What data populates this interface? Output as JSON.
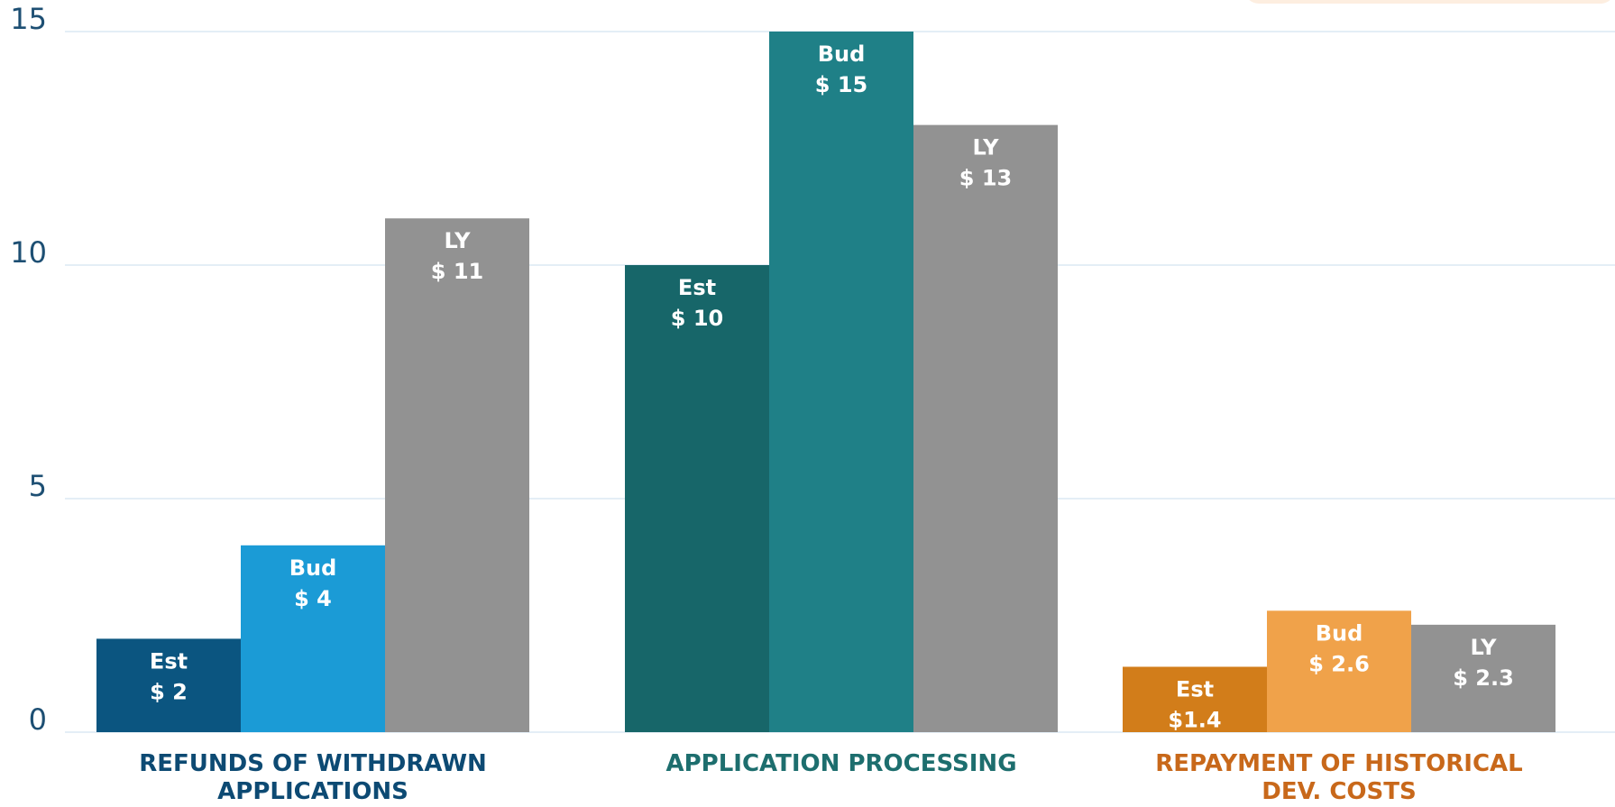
{
  "chart_data": {
    "type": "bar",
    "categories": [
      "REFUNDS OF WITHDRAWN APPLICATIONS",
      "APPLICATION PROCESSING",
      "REPAYMENT OF HISTORICAL DEV. COSTS"
    ],
    "category_colors": [
      "#0d4a73",
      "#1d6e6e",
      "#c8681a"
    ],
    "series": [
      {
        "name": "Est",
        "colors": [
          "#0b5580",
          "#176669",
          "#d27d1a"
        ],
        "values": [
          2,
          10,
          1.4
        ],
        "value_labels": [
          "$ 2",
          "$ 10",
          "$1.4"
        ]
      },
      {
        "name": "Bud",
        "colors": [
          "#1b9bd6",
          "#1f8087",
          "#f0a24a"
        ],
        "values": [
          4,
          15,
          2.6
        ],
        "value_labels": [
          "$ 4",
          "$ 15",
          "$ 2.6"
        ]
      },
      {
        "name": "LY",
        "colors": [
          "#929292",
          "#929292",
          "#929292"
        ],
        "values": [
          11,
          13,
          2.3
        ],
        "value_labels": [
          "$ 11",
          "$ 13",
          "$ 2.3"
        ]
      }
    ],
    "ylim": [
      0,
      15
    ],
    "yticks": [
      0,
      5,
      10,
      15
    ],
    "grid": true
  }
}
